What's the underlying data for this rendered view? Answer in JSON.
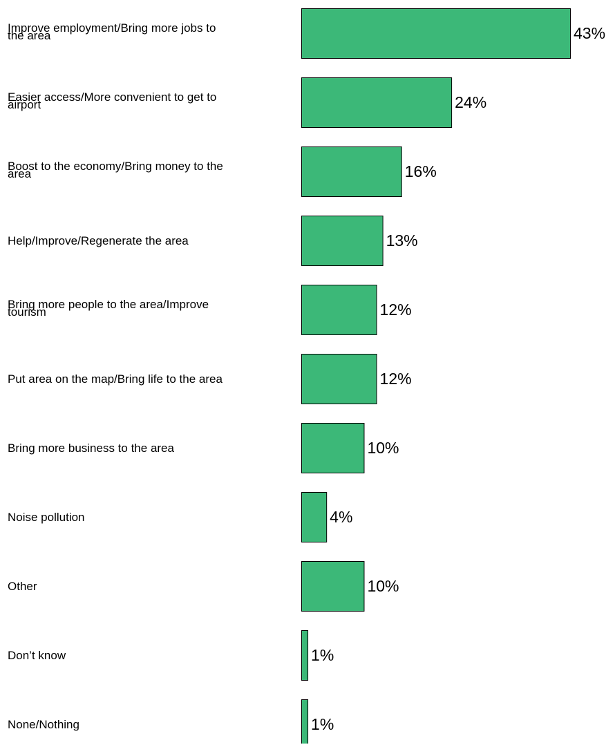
{
  "chart_data": {
    "type": "bar",
    "orientation": "horizontal",
    "categories": [
      "Improve employment/Bring more jobs to the area",
      "Easier access/More convenient to get to airport",
      "Boost to the economy/Bring money to the area",
      "Help/Improve/Regenerate the area",
      "Bring more people to the area/Improve tourism",
      "Put area on the map/Bring life to the area",
      "Bring more business to the area",
      "Noise pollution",
      "Other",
      "Don’t know",
      "None/Nothing"
    ],
    "category_lines": [
      [
        "Improve employment/Bring more jobs to",
        "the area"
      ],
      [
        "Easier access/More convenient to get to",
        "airport"
      ],
      [
        "Boost to the economy/Bring money to the",
        "area"
      ],
      [
        "Help/Improve/Regenerate the area"
      ],
      [
        "Bring more people to the area/Improve",
        "tourism"
      ],
      [
        "Put area on the map/Bring life to the area"
      ],
      [
        "Bring more business to the area"
      ],
      [
        "Noise pollution"
      ],
      [
        "Other"
      ],
      [
        "Don’t know"
      ],
      [
        "None/Nothing"
      ]
    ],
    "values": [
      43,
      24,
      16,
      13,
      12,
      12,
      10,
      4,
      10,
      1,
      1
    ],
    "value_labels": [
      "43%",
      "24%",
      "16%",
      "13%",
      "12%",
      "12%",
      "10%",
      "4%",
      "10%",
      "1%",
      "1%"
    ],
    "unit": "%",
    "xlim": [
      0,
      43
    ],
    "grid": false,
    "legend": "none",
    "colors": {
      "bar_fill": "#3cb878",
      "bar_stroke": "#000000",
      "text": "#000000"
    }
  }
}
